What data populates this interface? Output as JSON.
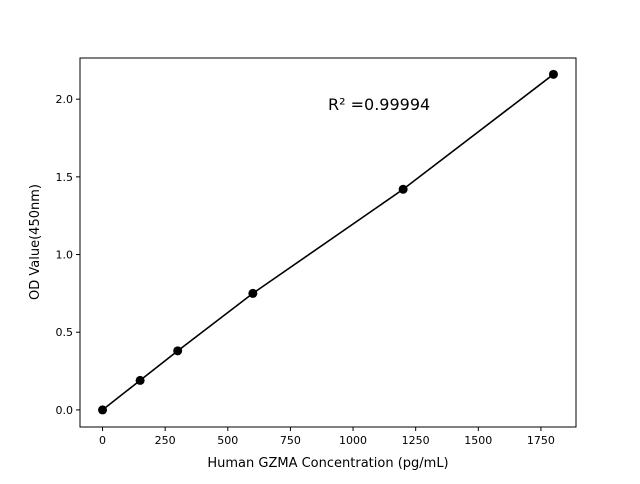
{
  "chart_data": {
    "type": "scatter",
    "title": "",
    "xlabel": "Human GZMA Concentration (pg/mL)",
    "ylabel": "OD Value(450nm)",
    "xlim": [
      -90,
      1890
    ],
    "ylim": [
      -0.11,
      2.265
    ],
    "xticks": [
      0,
      250,
      500,
      750,
      1000,
      1250,
      1500,
      1750
    ],
    "xtick_labels": [
      "0",
      "250",
      "500",
      "750",
      "1000",
      "1250",
      "1500",
      "1750"
    ],
    "yticks": [
      0.0,
      0.5,
      1.0,
      1.5,
      2.0
    ],
    "ytick_labels": [
      "0.0",
      "0.5",
      "1.0",
      "1.5",
      "2.0"
    ],
    "grid": false,
    "series": [
      {
        "x": [
          0,
          150,
          300,
          600,
          1200,
          1800
        ],
        "y": [
          0.0,
          0.19,
          0.38,
          0.75,
          1.42,
          2.16
        ],
        "color": "#000000",
        "marker": "circle",
        "line": true
      }
    ],
    "annotations": [
      {
        "text": "R² =0.99994",
        "x": 900,
        "y": 1.93
      }
    ]
  }
}
